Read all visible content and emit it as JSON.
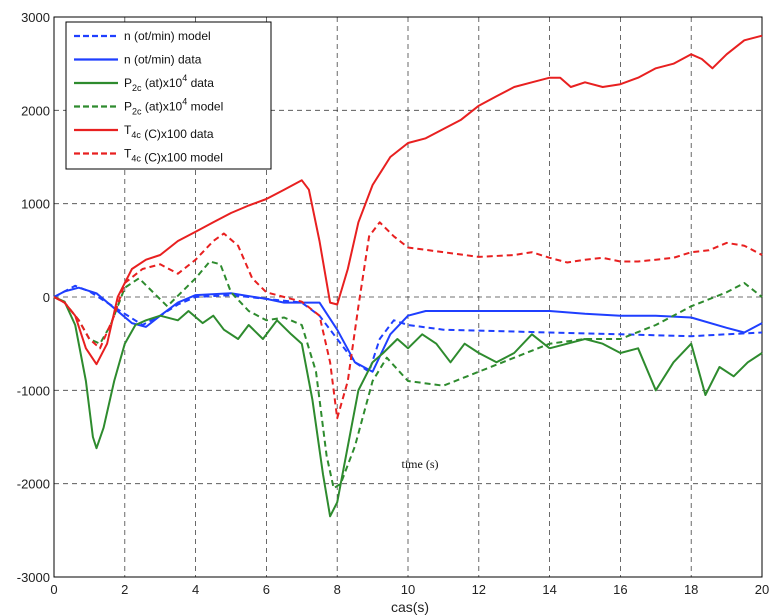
{
  "chart_data": {
    "type": "line",
    "title": "",
    "xlabel": "cas(s)",
    "ylabel": "",
    "xlim": [
      0,
      20
    ],
    "ylim": [
      -3000,
      3000
    ],
    "xticks": [
      "0",
      "2",
      "4",
      "6",
      "8",
      "10",
      "12",
      "14",
      "16",
      "18",
      "20"
    ],
    "yticks": [
      "3000",
      "2000",
      "1000",
      "0",
      "-1000",
      "-2000",
      "-3000"
    ],
    "grid": true,
    "legend_position": "top-left",
    "annotation": "time (s)",
    "series": [
      {
        "name": "n (ot/min) model",
        "legend": {
          "base": "n (ot/min) model",
          "sub": "",
          "sup": "",
          "tail": ""
        },
        "color": "#1f3fff",
        "dashed": true,
        "points": [
          [
            0,
            0
          ],
          [
            0.3,
            60
          ],
          [
            0.6,
            120
          ],
          [
            1.0,
            60
          ],
          [
            1.5,
            -60
          ],
          [
            2.0,
            -180
          ],
          [
            2.5,
            -300
          ],
          [
            3.0,
            -200
          ],
          [
            3.5,
            -80
          ],
          [
            4.0,
            0
          ],
          [
            5.0,
            20
          ],
          [
            6.0,
            -20
          ],
          [
            7.0,
            -60
          ],
          [
            7.5,
            -200
          ],
          [
            8.0,
            -450
          ],
          [
            8.5,
            -700
          ],
          [
            8.9,
            -800
          ],
          [
            9.2,
            -450
          ],
          [
            9.6,
            -250
          ],
          [
            10.0,
            -300
          ],
          [
            11.0,
            -350
          ],
          [
            12.0,
            -360
          ],
          [
            14.0,
            -380
          ],
          [
            16.0,
            -400
          ],
          [
            18.0,
            -420
          ],
          [
            19.0,
            -400
          ],
          [
            20.0,
            -380
          ]
        ]
      },
      {
        "name": "n (ot/min) data",
        "legend": {
          "base": "n (ot/min) data",
          "sub": "",
          "sup": "",
          "tail": ""
        },
        "color": "#1f3fff",
        "dashed": false,
        "points": [
          [
            0,
            0
          ],
          [
            0.3,
            60
          ],
          [
            0.7,
            100
          ],
          [
            1.2,
            40
          ],
          [
            1.7,
            -120
          ],
          [
            2.2,
            -280
          ],
          [
            2.6,
            -320
          ],
          [
            3.0,
            -200
          ],
          [
            3.5,
            -60
          ],
          [
            4.0,
            20
          ],
          [
            5.0,
            40
          ],
          [
            6.0,
            -20
          ],
          [
            6.5,
            -60
          ],
          [
            7.5,
            -60
          ],
          [
            8.0,
            -350
          ],
          [
            8.5,
            -700
          ],
          [
            9.0,
            -800
          ],
          [
            9.5,
            -400
          ],
          [
            10.0,
            -200
          ],
          [
            10.5,
            -150
          ],
          [
            12.0,
            -150
          ],
          [
            14.0,
            -150
          ],
          [
            15.0,
            -180
          ],
          [
            16.0,
            -200
          ],
          [
            17.0,
            -200
          ],
          [
            18.0,
            -220
          ],
          [
            19.0,
            -330
          ],
          [
            19.5,
            -380
          ],
          [
            20.0,
            -280
          ]
        ]
      },
      {
        "name": "P2c (at)x10^4 data",
        "legend": {
          "base": "P",
          "sub": "2c",
          "sup": "4",
          "tail": " data",
          "mid": " (at)x10"
        },
        "color": "#2e8b2e",
        "dashed": false,
        "points": [
          [
            0,
            0
          ],
          [
            0.3,
            -50
          ],
          [
            0.6,
            -300
          ],
          [
            0.9,
            -900
          ],
          [
            1.1,
            -1500
          ],
          [
            1.2,
            -1620
          ],
          [
            1.4,
            -1400
          ],
          [
            1.7,
            -900
          ],
          [
            2.0,
            -500
          ],
          [
            2.3,
            -300
          ],
          [
            2.6,
            -250
          ],
          [
            3.0,
            -200
          ],
          [
            3.5,
            -250
          ],
          [
            3.8,
            -150
          ],
          [
            4.2,
            -280
          ],
          [
            4.5,
            -200
          ],
          [
            4.8,
            -350
          ],
          [
            5.2,
            -450
          ],
          [
            5.5,
            -300
          ],
          [
            5.9,
            -450
          ],
          [
            6.3,
            -250
          ],
          [
            6.7,
            -400
          ],
          [
            7.0,
            -500
          ],
          [
            7.3,
            -1100
          ],
          [
            7.6,
            -1900
          ],
          [
            7.8,
            -2350
          ],
          [
            8.0,
            -2200
          ],
          [
            8.3,
            -1600
          ],
          [
            8.6,
            -1000
          ],
          [
            9.0,
            -700
          ],
          [
            9.3,
            -600
          ],
          [
            9.7,
            -450
          ],
          [
            10.0,
            -550
          ],
          [
            10.4,
            -400
          ],
          [
            10.8,
            -500
          ],
          [
            11.2,
            -700
          ],
          [
            11.6,
            -500
          ],
          [
            12.0,
            -600
          ],
          [
            12.5,
            -700
          ],
          [
            13.0,
            -600
          ],
          [
            13.5,
            -400
          ],
          [
            14.0,
            -550
          ],
          [
            14.5,
            -500
          ],
          [
            15.0,
            -450
          ],
          [
            15.5,
            -500
          ],
          [
            16.0,
            -600
          ],
          [
            16.5,
            -550
          ],
          [
            17.0,
            -1000
          ],
          [
            17.5,
            -700
          ],
          [
            18.0,
            -500
          ],
          [
            18.4,
            -1050
          ],
          [
            18.8,
            -750
          ],
          [
            19.2,
            -850
          ],
          [
            19.6,
            -700
          ],
          [
            20.0,
            -600
          ]
        ]
      },
      {
        "name": "P2c (at)x10^4 model",
        "legend": {
          "base": "P",
          "sub": "2c",
          "sup": "4",
          "tail": " model",
          "mid": " (at)x10"
        },
        "color": "#2e8b2e",
        "dashed": true,
        "points": [
          [
            0,
            0
          ],
          [
            0.3,
            -60
          ],
          [
            0.7,
            -250
          ],
          [
            1.0,
            -450
          ],
          [
            1.3,
            -500
          ],
          [
            1.6,
            -300
          ],
          [
            2.0,
            100
          ],
          [
            2.4,
            200
          ],
          [
            2.8,
            50
          ],
          [
            3.2,
            -100
          ],
          [
            3.6,
            50
          ],
          [
            4.0,
            200
          ],
          [
            4.4,
            380
          ],
          [
            4.7,
            350
          ],
          [
            5.0,
            50
          ],
          [
            5.5,
            -150
          ],
          [
            6.0,
            -250
          ],
          [
            6.5,
            -220
          ],
          [
            7.0,
            -300
          ],
          [
            7.4,
            -800
          ],
          [
            7.7,
            -1700
          ],
          [
            7.9,
            -2050
          ],
          [
            8.1,
            -2000
          ],
          [
            8.5,
            -1600
          ],
          [
            9.0,
            -900
          ],
          [
            9.4,
            -650
          ],
          [
            10.0,
            -900
          ],
          [
            11.0,
            -950
          ],
          [
            12.0,
            -800
          ],
          [
            13.0,
            -650
          ],
          [
            14.0,
            -500
          ],
          [
            15.0,
            -450
          ],
          [
            16.0,
            -450
          ],
          [
            17.0,
            -300
          ],
          [
            18.0,
            -100
          ],
          [
            19.0,
            50
          ],
          [
            19.5,
            150
          ],
          [
            20.0,
            0
          ]
        ]
      },
      {
        "name": "T4c (C)x100 data",
        "legend": {
          "base": "T",
          "sub": "4c",
          "sup": "",
          "tail": " (C)x100 data",
          "mid": ""
        },
        "color": "#e82020",
        "dashed": false,
        "points": [
          [
            0,
            0
          ],
          [
            0.3,
            -60
          ],
          [
            0.6,
            -200
          ],
          [
            0.9,
            -550
          ],
          [
            1.2,
            -720
          ],
          [
            1.5,
            -500
          ],
          [
            1.8,
            0
          ],
          [
            2.2,
            300
          ],
          [
            2.6,
            400
          ],
          [
            3.0,
            450
          ],
          [
            3.5,
            600
          ],
          [
            4.0,
            700
          ],
          [
            4.5,
            800
          ],
          [
            5.0,
            900
          ],
          [
            5.5,
            980
          ],
          [
            6.0,
            1050
          ],
          [
            6.5,
            1150
          ],
          [
            7.0,
            1250
          ],
          [
            7.2,
            1150
          ],
          [
            7.5,
            600
          ],
          [
            7.8,
            -60
          ],
          [
            8.0,
            -80
          ],
          [
            8.3,
            300
          ],
          [
            8.6,
            800
          ],
          [
            9.0,
            1200
          ],
          [
            9.5,
            1500
          ],
          [
            10.0,
            1650
          ],
          [
            10.5,
            1700
          ],
          [
            11.0,
            1800
          ],
          [
            11.5,
            1900
          ],
          [
            12.0,
            2050
          ],
          [
            12.5,
            2150
          ],
          [
            13.0,
            2250
          ],
          [
            13.5,
            2300
          ],
          [
            14.0,
            2350
          ],
          [
            14.3,
            2350
          ],
          [
            14.6,
            2250
          ],
          [
            15.0,
            2300
          ],
          [
            15.5,
            2250
          ],
          [
            16.0,
            2280
          ],
          [
            16.5,
            2350
          ],
          [
            17.0,
            2450
          ],
          [
            17.5,
            2500
          ],
          [
            18.0,
            2600
          ],
          [
            18.3,
            2550
          ],
          [
            18.6,
            2450
          ],
          [
            19.0,
            2600
          ],
          [
            19.5,
            2750
          ],
          [
            20.0,
            2800
          ]
        ]
      },
      {
        "name": "T4c (C)x100 model",
        "legend": {
          "base": "T",
          "sub": "4c",
          "sup": "",
          "tail": " (C)x100 model",
          "mid": ""
        },
        "color": "#e82020",
        "dashed": true,
        "points": [
          [
            0,
            0
          ],
          [
            0.3,
            -60
          ],
          [
            0.7,
            -250
          ],
          [
            1.0,
            -450
          ],
          [
            1.3,
            -550
          ],
          [
            1.7,
            -200
          ],
          [
            2.0,
            150
          ],
          [
            2.5,
            300
          ],
          [
            3.0,
            350
          ],
          [
            3.5,
            250
          ],
          [
            4.0,
            400
          ],
          [
            4.5,
            600
          ],
          [
            4.8,
            680
          ],
          [
            5.2,
            550
          ],
          [
            5.6,
            200
          ],
          [
            6.0,
            50
          ],
          [
            6.5,
            0
          ],
          [
            7.0,
            -50
          ],
          [
            7.5,
            -200
          ],
          [
            7.8,
            -700
          ],
          [
            8.0,
            -1300
          ],
          [
            8.3,
            -900
          ],
          [
            8.6,
            -100
          ],
          [
            8.9,
            650
          ],
          [
            9.2,
            800
          ],
          [
            9.6,
            650
          ],
          [
            10.0,
            530
          ],
          [
            11.0,
            480
          ],
          [
            12.0,
            430
          ],
          [
            13.0,
            450
          ],
          [
            13.5,
            480
          ],
          [
            14.0,
            420
          ],
          [
            14.5,
            370
          ],
          [
            15.0,
            400
          ],
          [
            15.5,
            420
          ],
          [
            16.0,
            380
          ],
          [
            16.5,
            380
          ],
          [
            17.0,
            400
          ],
          [
            17.5,
            420
          ],
          [
            18.0,
            480
          ],
          [
            18.5,
            500
          ],
          [
            19.0,
            580
          ],
          [
            19.5,
            550
          ],
          [
            20.0,
            450
          ]
        ]
      }
    ]
  }
}
